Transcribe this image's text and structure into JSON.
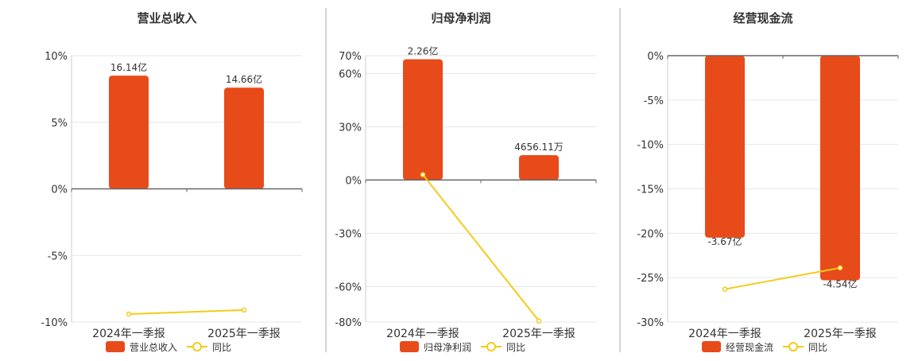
{
  "colors": {
    "bar": "#e84b1a",
    "line": "#f2cc19",
    "grid": "#e6e6e6",
    "axis": "#666666",
    "text": "#333333",
    "separator": "#aaaaaa"
  },
  "chart_data": [
    {
      "type": "bar",
      "title": "营业总收入",
      "categories": [
        "2024年一季报",
        "2025年一季报"
      ],
      "y_ticks": [
        "10%",
        "5%",
        "0%",
        "-5%",
        "-10%"
      ],
      "ylim": [
        -10,
        10
      ],
      "series": [
        {
          "name": "营业总收入",
          "type": "bar",
          "values": [
            8.5,
            7.6
          ],
          "labels": [
            "16.14亿",
            "14.66亿"
          ]
        },
        {
          "name": "同比",
          "type": "line",
          "values": [
            -9.4,
            -9.1
          ]
        }
      ],
      "legend": "bottom"
    },
    {
      "type": "bar",
      "title": "归母净利润",
      "categories": [
        "2024年一季报",
        "2025年一季报"
      ],
      "y_ticks": [
        "70%",
        "60%",
        "30%",
        "0%",
        "-30%",
        "-60%",
        "-80%"
      ],
      "ylim": [
        -80,
        70
      ],
      "series": [
        {
          "name": "归母净利润",
          "type": "bar",
          "values": [
            68,
            14
          ],
          "labels": [
            "2.26亿",
            "4656.11万"
          ]
        },
        {
          "name": "同比",
          "type": "line",
          "values": [
            3,
            -79.4
          ]
        }
      ],
      "legend": "bottom"
    },
    {
      "type": "bar",
      "title": "经营现金流",
      "categories": [
        "2024年一季报",
        "2025年一季报"
      ],
      "y_ticks": [
        "0%",
        "-5%",
        "-10%",
        "-15%",
        "-20%",
        "-25%",
        "-30%"
      ],
      "ylim": [
        -30,
        0
      ],
      "series": [
        {
          "name": "经营现金流",
          "type": "bar",
          "values": [
            -20.5,
            -25.3
          ],
          "labels": [
            "-3.67亿",
            "-4.54亿"
          ]
        },
        {
          "name": "同比",
          "type": "line",
          "values": [
            -26.3,
            -23.9
          ]
        }
      ],
      "legend": "bottom"
    }
  ]
}
